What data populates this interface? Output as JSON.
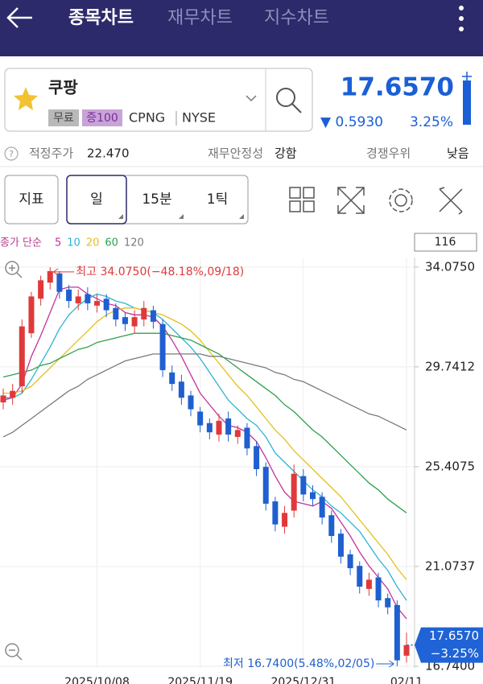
{
  "header": {
    "tabs": [
      "종목차트",
      "재무차트",
      "지수차트"
    ]
  },
  "stock": {
    "name": "쿠팡",
    "tags": [
      "무료",
      "증100"
    ],
    "ticker": "CPNG",
    "exchange": "NYSE",
    "price": "17.6570",
    "change": "▼ 0.5930",
    "change_pct": "3.25%"
  },
  "info": {
    "fair_price_label": "적정주가",
    "fair_price": "22.470",
    "stability_label": "재무안정성",
    "stability": "강함",
    "moat_label": "경쟁우위",
    "moat": "낮음"
  },
  "toolbar": {
    "buttons": [
      "지표",
      "일",
      "15분",
      "1틱"
    ]
  },
  "chart_data": {
    "type": "candlestick",
    "legend_title": "종가 단순",
    "visible_count": "116",
    "categories": [
      null,
      null,
      null,
      null,
      null,
      null,
      null,
      null,
      null,
      null,
      "2025/10/08",
      null,
      null,
      null,
      null,
      null,
      null,
      null,
      null,
      null,
      null,
      "2025/11/19",
      null,
      null,
      null,
      null,
      null,
      null,
      null,
      null,
      null,
      null,
      "2025/12/31",
      null,
      null,
      null,
      null,
      null,
      null,
      null,
      null,
      null,
      null,
      "02/11"
    ],
    "open": [
      28.2,
      28.4,
      28.9,
      31.2,
      32.7,
      33.4,
      33.8,
      33.1,
      32.5,
      32.9,
      32.4,
      32.7,
      32.3,
      31.9,
      31.5,
      31.8,
      32.2,
      31.6,
      29.5,
      29.1,
      28.5,
      27.8,
      27.3,
      26.8,
      27.5,
      26.7,
      27.1,
      26.3,
      25.4,
      23.9,
      22.8,
      23.5,
      25.0,
      24.3,
      24.1,
      23.3,
      22.5,
      21.6,
      21.1,
      20.1,
      20.6,
      19.7,
      19.4,
      17.2
    ],
    "high": [
      28.8,
      29.0,
      31.8,
      33.0,
      33.7,
      34.075,
      33.9,
      33.3,
      33.1,
      33.2,
      32.9,
      32.9,
      32.5,
      32.1,
      32.2,
      32.6,
      32.4,
      31.8,
      29.8,
      29.4,
      28.7,
      28.0,
      27.5,
      27.7,
      27.8,
      27.2,
      27.3,
      26.5,
      25.6,
      24.1,
      23.7,
      25.5,
      25.3,
      24.6,
      24.3,
      23.5,
      22.7,
      21.8,
      21.3,
      20.8,
      20.8,
      19.9,
      19.6,
      18.2
    ],
    "low": [
      27.9,
      28.1,
      28.6,
      31.0,
      32.4,
      33.1,
      32.7,
      32.3,
      32.2,
      32.2,
      32.1,
      31.9,
      31.5,
      31.3,
      31.2,
      31.5,
      31.4,
      29.3,
      28.7,
      28.1,
      27.6,
      26.9,
      26.6,
      26.5,
      26.5,
      26.4,
      25.9,
      25.0,
      23.5,
      22.6,
      22.5,
      23.2,
      23.9,
      23.7,
      22.9,
      22.1,
      21.2,
      20.7,
      19.9,
      19.8,
      19.3,
      19.0,
      16.74,
      16.9
    ],
    "close": [
      28.5,
      28.7,
      31.5,
      32.8,
      33.5,
      33.9,
      33.0,
      32.6,
      32.8,
      32.5,
      32.6,
      32.2,
      31.8,
      31.6,
      31.9,
      32.3,
      31.7,
      29.6,
      29.0,
      28.4,
      27.9,
      27.2,
      26.9,
      27.4,
      26.8,
      27.0,
      26.2,
      25.3,
      23.8,
      22.9,
      23.4,
      25.1,
      24.2,
      24.0,
      23.2,
      22.4,
      21.5,
      21.0,
      20.2,
      20.5,
      19.6,
      19.3,
      17.0,
      17.66
    ],
    "up_color": "#e0393a",
    "down_color": "#1f5fd0",
    "series": [
      {
        "name": "5",
        "color": "#c2339c",
        "values": [
          28.3,
          28.4,
          29.0,
          30.2,
          31.1,
          32.1,
          33.1,
          33.2,
          33.2,
          32.9,
          32.7,
          32.5,
          32.4,
          32.1,
          32.0,
          32.0,
          31.9,
          31.5,
          30.9,
          30.2,
          29.4,
          28.6,
          28.1,
          27.6,
          27.2,
          27.1,
          26.9,
          26.5,
          25.8,
          25.0,
          24.3,
          23.9,
          23.8,
          23.7,
          23.9,
          23.6,
          23.0,
          22.4,
          21.7,
          21.1,
          20.6,
          20.1,
          19.3,
          18.8
        ]
      },
      {
        "name": "10",
        "color": "#2fb3d4",
        "values": [
          28.4,
          28.4,
          28.6,
          29.2,
          29.9,
          30.6,
          31.4,
          32.0,
          32.4,
          32.7,
          32.9,
          32.8,
          32.6,
          32.5,
          32.3,
          32.2,
          32.1,
          31.8,
          31.4,
          31.0,
          30.6,
          30.1,
          29.5,
          28.9,
          28.3,
          27.9,
          27.5,
          27.2,
          26.7,
          26.0,
          25.6,
          25.2,
          24.8,
          24.4,
          24.1,
          23.7,
          23.4,
          23.0,
          22.6,
          22.0,
          21.4,
          20.9,
          20.2,
          19.6
        ]
      },
      {
        "name": "20",
        "color": "#e2c11a",
        "values": [
          28.6,
          28.6,
          28.7,
          28.9,
          29.3,
          29.7,
          30.1,
          30.5,
          30.9,
          31.3,
          31.7,
          32.0,
          32.2,
          32.3,
          32.3,
          32.2,
          32.1,
          32.0,
          31.8,
          31.6,
          31.3,
          30.9,
          30.4,
          29.9,
          29.4,
          28.9,
          28.5,
          28.0,
          27.5,
          27.0,
          26.6,
          26.1,
          25.7,
          25.3,
          24.9,
          24.5,
          24.1,
          23.6,
          23.1,
          22.6,
          22.1,
          21.6,
          21.0,
          20.5
        ]
      },
      {
        "name": "60",
        "color": "#2ea04c",
        "values": [
          29.3,
          29.4,
          29.5,
          29.6,
          29.8,
          29.9,
          30.1,
          30.3,
          30.5,
          30.6,
          30.8,
          30.9,
          31.0,
          31.1,
          31.2,
          31.2,
          31.2,
          31.2,
          31.1,
          31.0,
          30.9,
          30.7,
          30.5,
          30.3,
          30.0,
          29.7,
          29.4,
          29.1,
          28.8,
          28.5,
          28.1,
          27.8,
          27.4,
          27.0,
          26.7,
          26.3,
          25.9,
          25.5,
          25.1,
          24.7,
          24.4,
          24.0,
          23.7,
          23.4
        ]
      },
      {
        "name": "120",
        "color": "#7a7a7a",
        "values": [
          26.7,
          26.9,
          27.2,
          27.5,
          27.8,
          28.1,
          28.4,
          28.7,
          28.9,
          29.2,
          29.4,
          29.6,
          29.8,
          30.0,
          30.1,
          30.2,
          30.3,
          30.3,
          30.3,
          30.3,
          30.3,
          30.3,
          30.2,
          30.2,
          30.1,
          30.0,
          29.9,
          29.8,
          29.7,
          29.5,
          29.4,
          29.2,
          29.1,
          28.9,
          28.7,
          28.5,
          28.3,
          28.1,
          27.9,
          27.7,
          27.6,
          27.4,
          27.2,
          27.0
        ]
      }
    ],
    "ylim": [
      16.67,
      34.49
    ],
    "yticks": [
      {
        "value": 34.075,
        "label": "34.0750"
      },
      29.7412,
      25.4075,
      21.0737,
      {
        "value": 16.74,
        "label": "16.7400"
      }
    ],
    "grid": true,
    "annotations": {
      "high": "최고 34.0750(−48.18%,09/18)",
      "low": "최저 16.7400(5.48%,02/05)"
    },
    "last_price_label": "17.6570",
    "last_change_label": "−3.25%"
  }
}
